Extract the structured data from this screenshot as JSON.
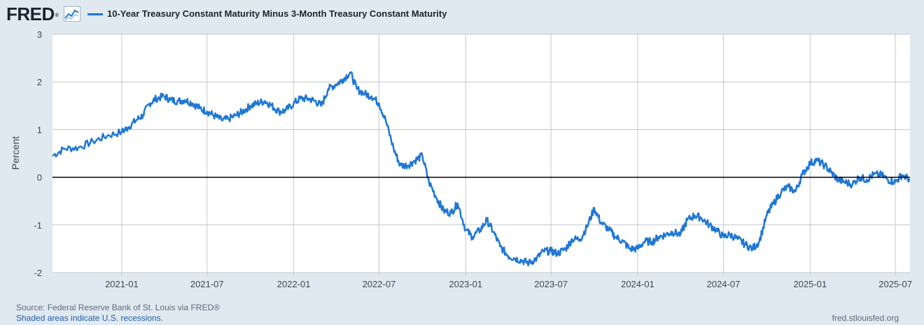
{
  "header": {
    "logo": "FRED",
    "logo_icon": "line-chart-icon",
    "legend_label": "10-Year Treasury Constant Maturity Minus 3-Month Treasury Constant Maturity"
  },
  "footer": {
    "source": "Source: Federal Reserve Bank of St. Louis via FRED®",
    "recession_note": "Shaded areas indicate U.S. recessions.",
    "site": "fred.stlouisfed.org"
  },
  "colors": {
    "series": "#1f77d5",
    "background": "#e1e9f0",
    "plot_background": "#ffffff",
    "grid": "#c3c9cf",
    "zero_line": "#000000"
  },
  "chart_data": {
    "type": "line",
    "title": "",
    "xlabel": "",
    "ylabel": "Percent",
    "ylim": [
      -2,
      3
    ],
    "yticks": [
      3,
      2,
      1,
      0,
      -1,
      -2
    ],
    "xlim": [
      "2020-08-07",
      "2025-08-01"
    ],
    "xtick_labels": [
      "2021-01",
      "2021-07",
      "2022-01",
      "2022-07",
      "2023-01",
      "2023-07",
      "2024-01",
      "2024-07",
      "2025-01",
      "2025-07"
    ],
    "xtick_dates": [
      "2021-01-01",
      "2021-07-01",
      "2022-01-01",
      "2022-07-01",
      "2023-01-01",
      "2023-07-01",
      "2024-01-01",
      "2024-07-01",
      "2025-01-01",
      "2025-07-01"
    ],
    "grid": true,
    "legend": "top-left",
    "series": [
      {
        "name": "10-Year Treasury Constant Maturity Minus 3-Month Treasury Constant Maturity",
        "x": [
          "2020-08-07",
          "2020-09-01",
          "2020-10-01",
          "2020-11-01",
          "2020-12-01",
          "2021-01-01",
          "2021-01-15",
          "2021-02-01",
          "2021-02-15",
          "2021-03-01",
          "2021-03-15",
          "2021-04-01",
          "2021-04-15",
          "2021-05-01",
          "2021-05-15",
          "2021-06-01",
          "2021-06-15",
          "2021-07-01",
          "2021-07-15",
          "2021-08-01",
          "2021-08-15",
          "2021-09-01",
          "2021-09-15",
          "2021-10-01",
          "2021-10-15",
          "2021-11-01",
          "2021-11-15",
          "2021-12-01",
          "2021-12-15",
          "2022-01-01",
          "2022-01-15",
          "2022-02-01",
          "2022-02-15",
          "2022-03-01",
          "2022-03-15",
          "2022-04-01",
          "2022-04-15",
          "2022-05-01",
          "2022-05-15",
          "2022-06-01",
          "2022-06-15",
          "2022-07-01",
          "2022-07-15",
          "2022-08-01",
          "2022-08-15",
          "2022-09-01",
          "2022-09-15",
          "2022-10-01",
          "2022-10-15",
          "2022-11-01",
          "2022-11-15",
          "2022-12-01",
          "2022-12-15",
          "2023-01-01",
          "2023-01-15",
          "2023-02-01",
          "2023-02-15",
          "2023-03-01",
          "2023-03-15",
          "2023-04-01",
          "2023-04-15",
          "2023-05-01",
          "2023-05-15",
          "2023-06-01",
          "2023-06-15",
          "2023-07-01",
          "2023-07-15",
          "2023-08-01",
          "2023-08-15",
          "2023-09-01",
          "2023-09-15",
          "2023-10-01",
          "2023-10-15",
          "2023-11-01",
          "2023-11-15",
          "2023-12-01",
          "2023-12-15",
          "2024-01-01",
          "2024-01-15",
          "2024-02-01",
          "2024-02-15",
          "2024-03-01",
          "2024-03-15",
          "2024-04-01",
          "2024-04-15",
          "2024-05-01",
          "2024-05-15",
          "2024-06-01",
          "2024-06-15",
          "2024-07-01",
          "2024-07-15",
          "2024-08-01",
          "2024-08-15",
          "2024-09-01",
          "2024-09-15",
          "2024-10-01",
          "2024-10-15",
          "2024-11-01",
          "2024-11-15",
          "2024-12-01",
          "2024-12-15",
          "2025-01-01",
          "2025-01-15",
          "2025-02-01",
          "2025-02-15",
          "2025-03-01",
          "2025-03-15",
          "2025-04-01",
          "2025-04-15",
          "2025-05-01",
          "2025-05-15",
          "2025-06-01",
          "2025-06-15",
          "2025-07-01",
          "2025-07-15",
          "2025-08-01"
        ],
        "values": [
          0.45,
          0.6,
          0.62,
          0.75,
          0.87,
          0.95,
          1.05,
          1.2,
          1.3,
          1.55,
          1.65,
          1.7,
          1.62,
          1.6,
          1.62,
          1.55,
          1.45,
          1.38,
          1.3,
          1.2,
          1.22,
          1.3,
          1.38,
          1.5,
          1.55,
          1.6,
          1.5,
          1.38,
          1.4,
          1.55,
          1.65,
          1.65,
          1.6,
          1.5,
          1.85,
          1.95,
          2.05,
          2.2,
          1.85,
          1.75,
          1.7,
          1.55,
          1.2,
          0.6,
          0.25,
          0.25,
          0.35,
          0.45,
          -0.1,
          -0.45,
          -0.7,
          -0.75,
          -0.55,
          -1.1,
          -1.25,
          -1.1,
          -0.9,
          -1.15,
          -1.45,
          -1.65,
          -1.7,
          -1.75,
          -1.8,
          -1.7,
          -1.55,
          -1.55,
          -1.6,
          -1.5,
          -1.3,
          -1.3,
          -1.05,
          -0.65,
          -0.95,
          -1.1,
          -1.25,
          -1.35,
          -1.5,
          -1.5,
          -1.35,
          -1.35,
          -1.25,
          -1.2,
          -1.15,
          -1.2,
          -0.9,
          -0.8,
          -0.85,
          -1.0,
          -1.1,
          -1.25,
          -1.2,
          -1.3,
          -1.4,
          -1.5,
          -1.35,
          -0.8,
          -0.55,
          -0.3,
          -0.2,
          -0.3,
          0.05,
          0.3,
          0.35,
          0.25,
          0.1,
          -0.05,
          -0.1,
          -0.15,
          0.0,
          -0.05,
          0.05,
          0.05,
          -0.05,
          -0.1,
          0.05,
          -0.05
        ]
      }
    ]
  }
}
